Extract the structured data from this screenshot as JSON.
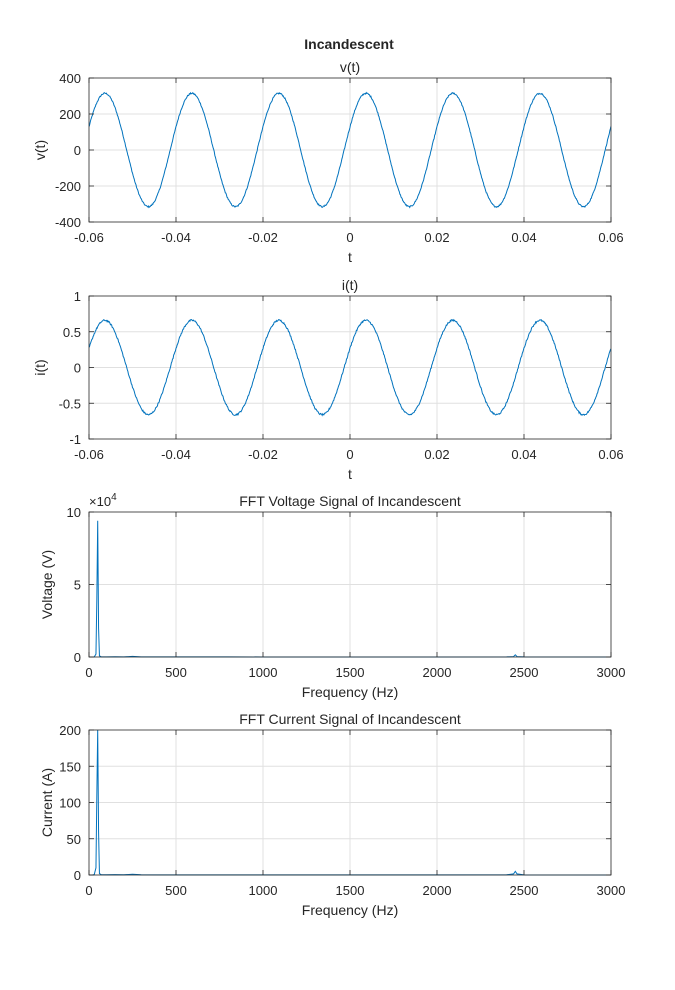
{
  "figure_title": "Incandescent",
  "colors": {
    "line": "#0072BD",
    "grid": "#e0e0e0",
    "axes": "#262626",
    "background": "#ffffff"
  },
  "chart_data": [
    {
      "type": "line",
      "title": "v(t)",
      "xlabel": "t",
      "ylabel": "v(t)",
      "xlim": [
        -0.06,
        0.06
      ],
      "ylim": [
        -400,
        400
      ],
      "xticks": [
        -0.06,
        -0.04,
        -0.02,
        0,
        0.02,
        0.04,
        0.06
      ],
      "xticklabels": [
        "-0.06",
        "-0.04",
        "-0.02",
        "0",
        "0.02",
        "0.04",
        "0.06"
      ],
      "yticks": [
        -400,
        -200,
        0,
        200,
        400
      ],
      "yticklabels": [
        "-400",
        "-200",
        "0",
        "200",
        "400"
      ],
      "grid": true,
      "series": [
        {
          "signal": "sine",
          "amplitude": 315,
          "frequency_hz": 50,
          "phase_rad": 0.42,
          "noise": 4
        }
      ]
    },
    {
      "type": "line",
      "title": "i(t)",
      "xlabel": "t",
      "ylabel": "i(t)",
      "xlim": [
        -0.06,
        0.06
      ],
      "ylim": [
        -1,
        1
      ],
      "xticks": [
        -0.06,
        -0.04,
        -0.02,
        0,
        0.02,
        0.04,
        0.06
      ],
      "xticklabels": [
        "-0.06",
        "-0.04",
        "-0.02",
        "0",
        "0.02",
        "0.04",
        "0.06"
      ],
      "yticks": [
        -1,
        -0.5,
        0,
        0.5,
        1
      ],
      "yticklabels": [
        "-1",
        "-0.5",
        "0",
        "0.5",
        "1"
      ],
      "grid": true,
      "series": [
        {
          "signal": "sine",
          "amplitude": 0.66,
          "frequency_hz": 50,
          "phase_rad": 0.42,
          "noise": 0.012
        }
      ]
    },
    {
      "type": "line",
      "title": "FFT Voltage Signal of Incandescent",
      "xlabel": "Frequency (Hz)",
      "ylabel": "Voltage  (V)",
      "xlim": [
        0,
        3000
      ],
      "ylim": [
        0,
        100000
      ],
      "exponent_label": "×10",
      "exponent_power": "4",
      "xticks": [
        0,
        500,
        1000,
        1500,
        2000,
        2500,
        3000
      ],
      "xticklabels": [
        "0",
        "500",
        "1000",
        "1500",
        "2000",
        "2500",
        "3000"
      ],
      "yticks": [
        0,
        50000,
        100000
      ],
      "yticklabels": [
        "0",
        "5",
        "10"
      ],
      "grid": true,
      "series": [
        {
          "x": [
            0,
            20,
            30,
            40,
            45,
            50,
            55,
            60,
            70,
            100,
            150,
            200,
            250,
            300,
            400,
            500,
            800,
            1000,
            1500,
            2000,
            2400,
            2440,
            2450,
            2460,
            2500,
            3000
          ],
          "y": [
            0,
            0,
            100,
            2000,
            40000,
            94000,
            20000,
            800,
            100,
            80,
            200,
            100,
            400,
            100,
            80,
            60,
            50,
            40,
            40,
            40,
            80,
            300,
            1500,
            300,
            60,
            0
          ]
        }
      ]
    },
    {
      "type": "line",
      "title": "FFT Current Signal of Incandescent",
      "xlabel": "Frequency (Hz)",
      "ylabel": "Current  (A)",
      "xlim": [
        0,
        3000
      ],
      "ylim": [
        0,
        200
      ],
      "xticks": [
        0,
        500,
        1000,
        1500,
        2000,
        2500,
        3000
      ],
      "xticklabels": [
        "0",
        "500",
        "1000",
        "1500",
        "2000",
        "2500",
        "3000"
      ],
      "yticks": [
        0,
        50,
        100,
        150,
        200
      ],
      "yticklabels": [
        "0",
        "50",
        "100",
        "150",
        "200"
      ],
      "grid": true,
      "series": [
        {
          "x": [
            0,
            20,
            30,
            40,
            45,
            50,
            55,
            60,
            70,
            100,
            150,
            200,
            250,
            300,
            400,
            500,
            800,
            1000,
            1500,
            2000,
            2400,
            2440,
            2450,
            2460,
            2500,
            3000
          ],
          "y": [
            0,
            0,
            0.5,
            10,
            110,
            200,
            60,
            2,
            0.5,
            0.3,
            0.6,
            0.3,
            1,
            0.3,
            0.2,
            0.2,
            0.2,
            0.1,
            0.1,
            0.1,
            0.3,
            1.5,
            5,
            1.5,
            0.2,
            0
          ]
        }
      ]
    }
  ]
}
